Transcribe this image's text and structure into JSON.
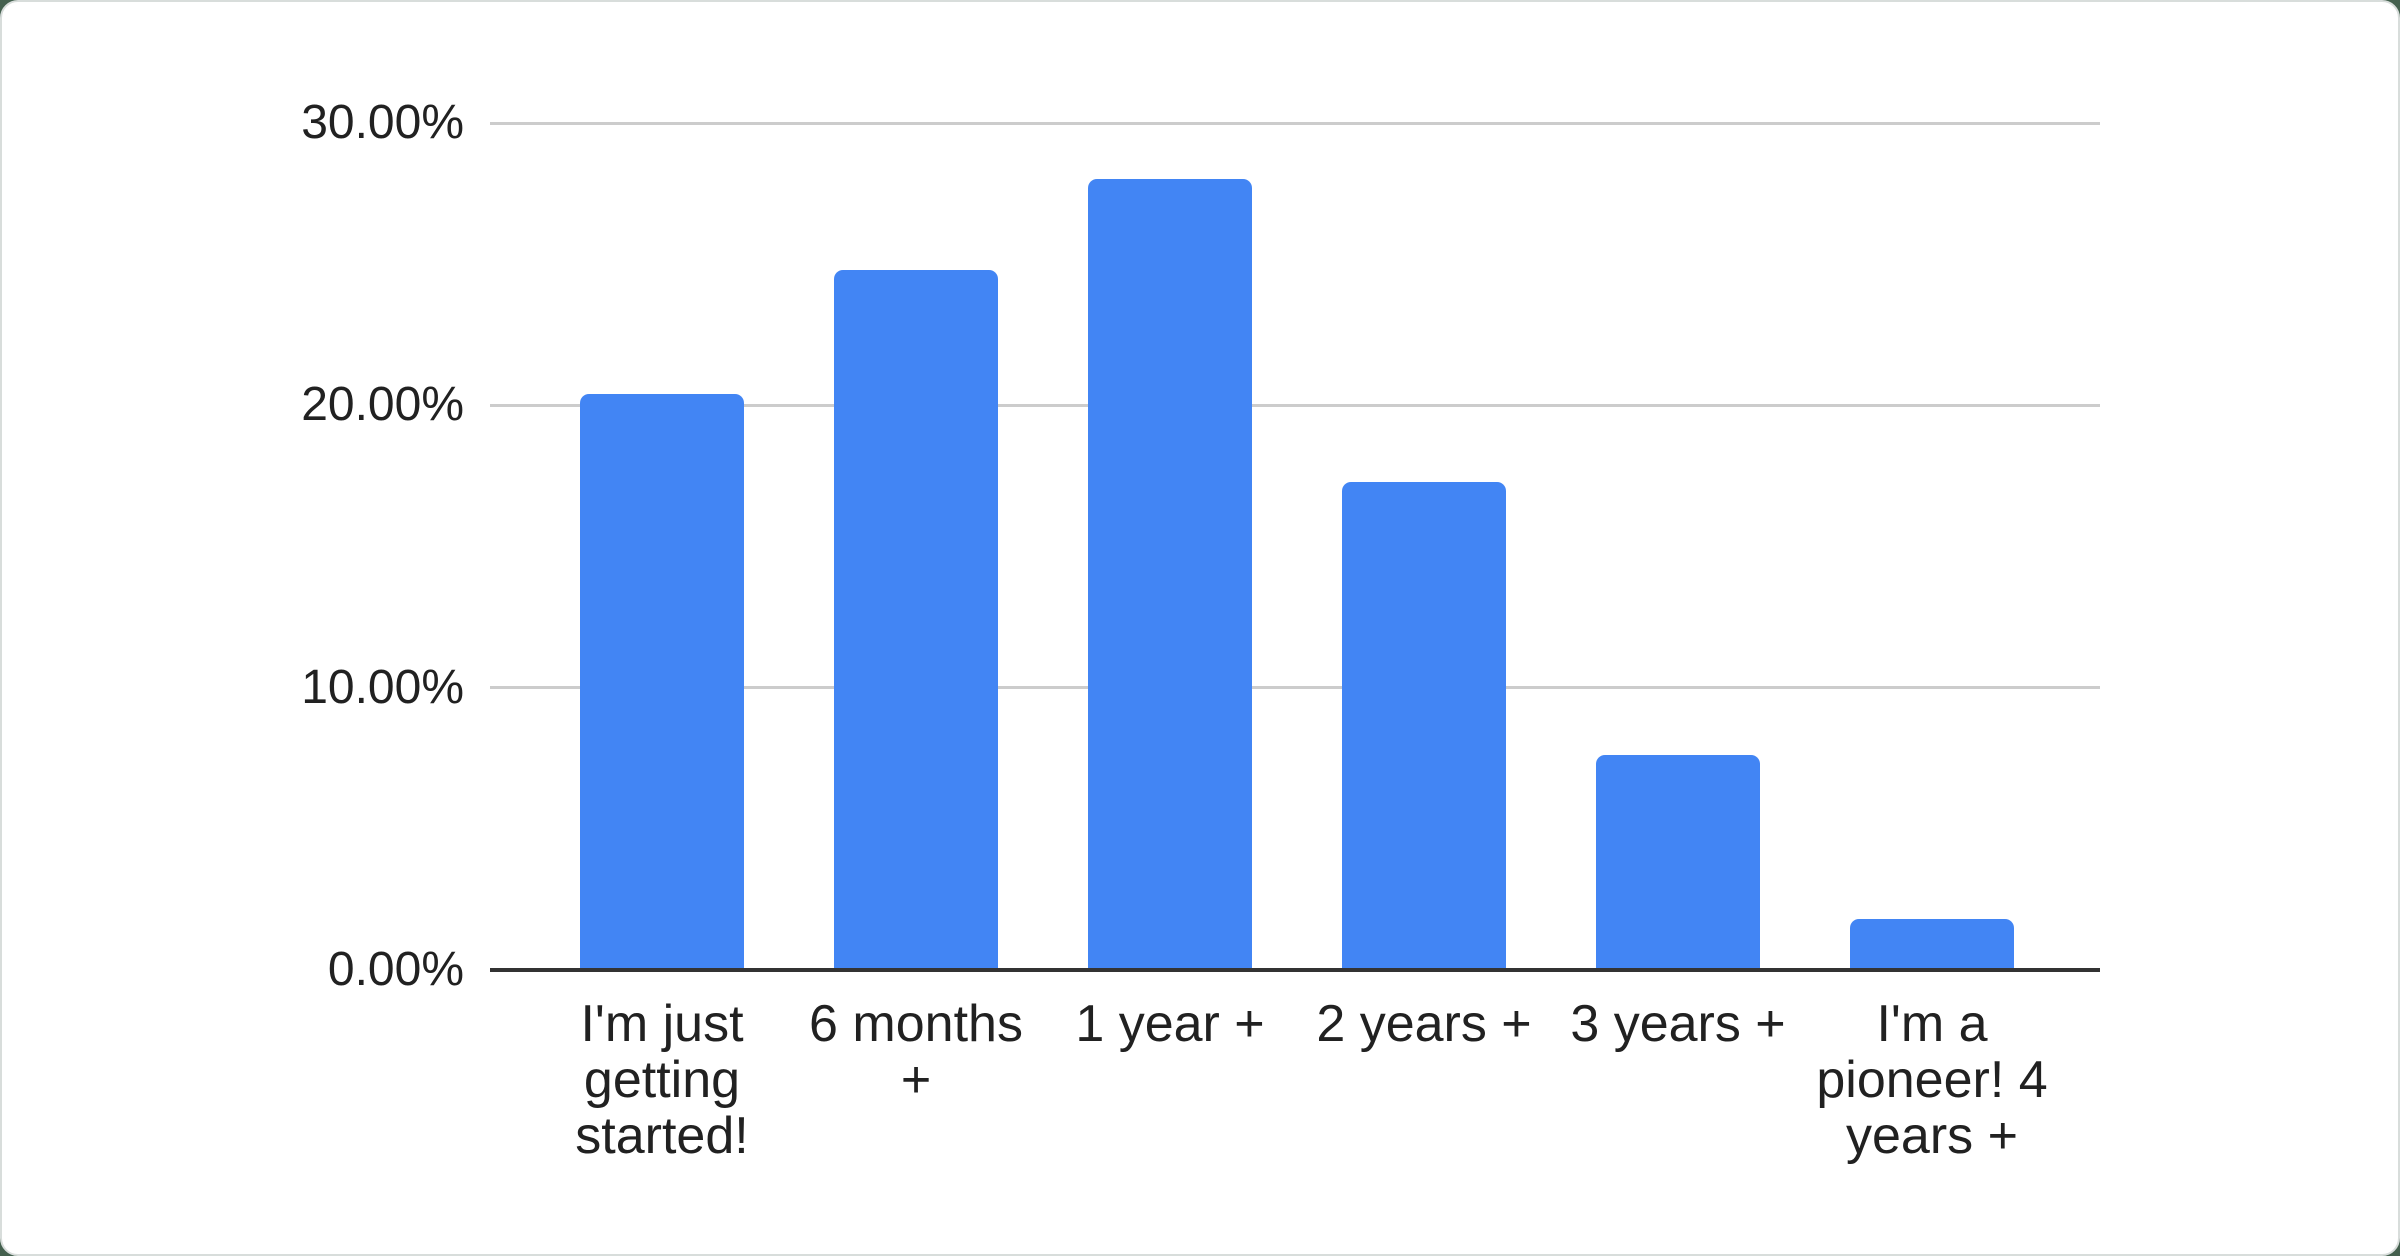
{
  "chart_data": {
    "type": "bar",
    "title": "",
    "xlabel": "",
    "ylabel": "",
    "categories": [
      "I'm just getting started!",
      "6 months +",
      "1 year +",
      "2 years +",
      "3 years +",
      "I'm a pioneer! 4 years +"
    ],
    "values": [
      20.4,
      24.8,
      28.0,
      17.3,
      7.6,
      1.8
    ],
    "value_unit": "%",
    "ylim": [
      0,
      30
    ],
    "y_ticks": [
      {
        "value": 0,
        "label": "0.00%"
      },
      {
        "value": 10,
        "label": "10.00%"
      },
      {
        "value": 20,
        "label": "20.00%"
      },
      {
        "value": 30,
        "label": "30.00%"
      }
    ],
    "grid": true,
    "legend_position": "none",
    "colors": {
      "bar": "#4285f4",
      "gridline": "#cccccc",
      "axis_line": "#333333",
      "label_text": "#212121",
      "card_background": "#ffffff",
      "card_border": "#d8dddb",
      "page_background": "#44604e"
    }
  }
}
